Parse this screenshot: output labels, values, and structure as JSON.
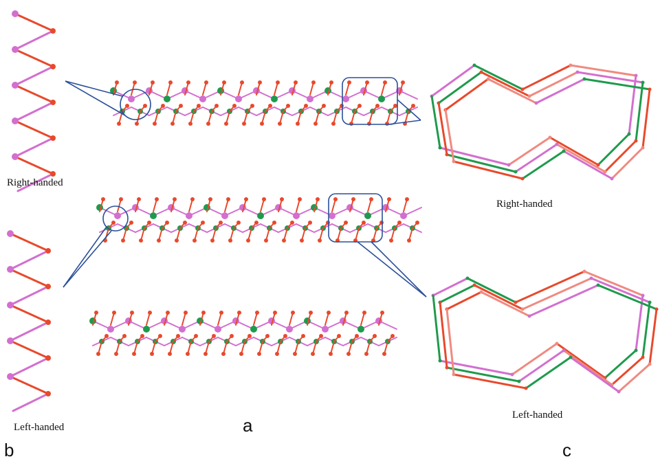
{
  "panels": {
    "a": {
      "label": "a"
    },
    "b": {
      "label": "b",
      "top_caption": "Right-handed",
      "bottom_caption": "Left-handed"
    },
    "c": {
      "label": "c",
      "top_caption": "Right-handed",
      "bottom_caption": "Left-handed"
    }
  }
}
